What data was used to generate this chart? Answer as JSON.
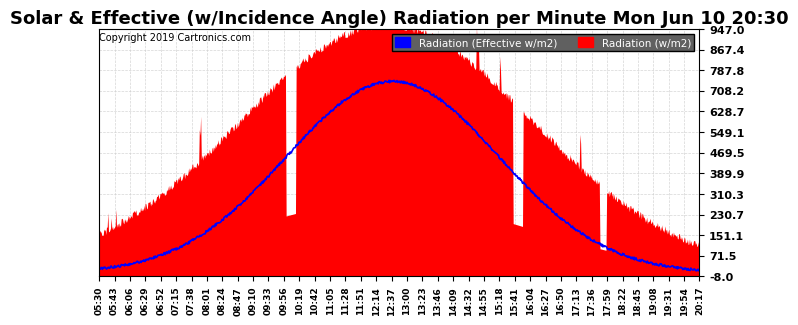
{
  "title": "Solar & Effective (w/Incidence Angle) Radiation per Minute Mon Jun 10 20:30",
  "copyright": "Copyright 2019 Cartronics.com",
  "ylabel_right_ticks": [
    -8.0,
    71.5,
    151.1,
    230.7,
    310.3,
    389.9,
    469.5,
    549.1,
    628.7,
    708.2,
    787.8,
    867.4,
    947.0
  ],
  "ylim": [
    -8.0,
    947.0
  ],
  "legend_blue_label": "Radiation (Effective w/m2)",
  "legend_red_label": "Radiation (w/m2)",
  "background_color": "#ffffff",
  "plot_bg_color": "#ffffff",
  "grid_color": "#cccccc",
  "red_fill_color": "#ff0000",
  "blue_line_color": "#0000ff",
  "title_fontsize": 13,
  "x_tick_labels": [
    "05:30",
    "05:43",
    "06:06",
    "06:29",
    "06:52",
    "07:15",
    "07:38",
    "08:01",
    "08:24",
    "08:47",
    "09:10",
    "09:33",
    "09:56",
    "10:19",
    "10:42",
    "11:05",
    "11:28",
    "11:51",
    "12:14",
    "12:37",
    "13:00",
    "13:23",
    "13:46",
    "14:09",
    "14:32",
    "14:55",
    "15:18",
    "15:41",
    "16:04",
    "16:27",
    "16:50",
    "17:13",
    "17:36",
    "17:59",
    "18:22",
    "18:45",
    "19:08",
    "19:31",
    "19:54",
    "20:17"
  ]
}
